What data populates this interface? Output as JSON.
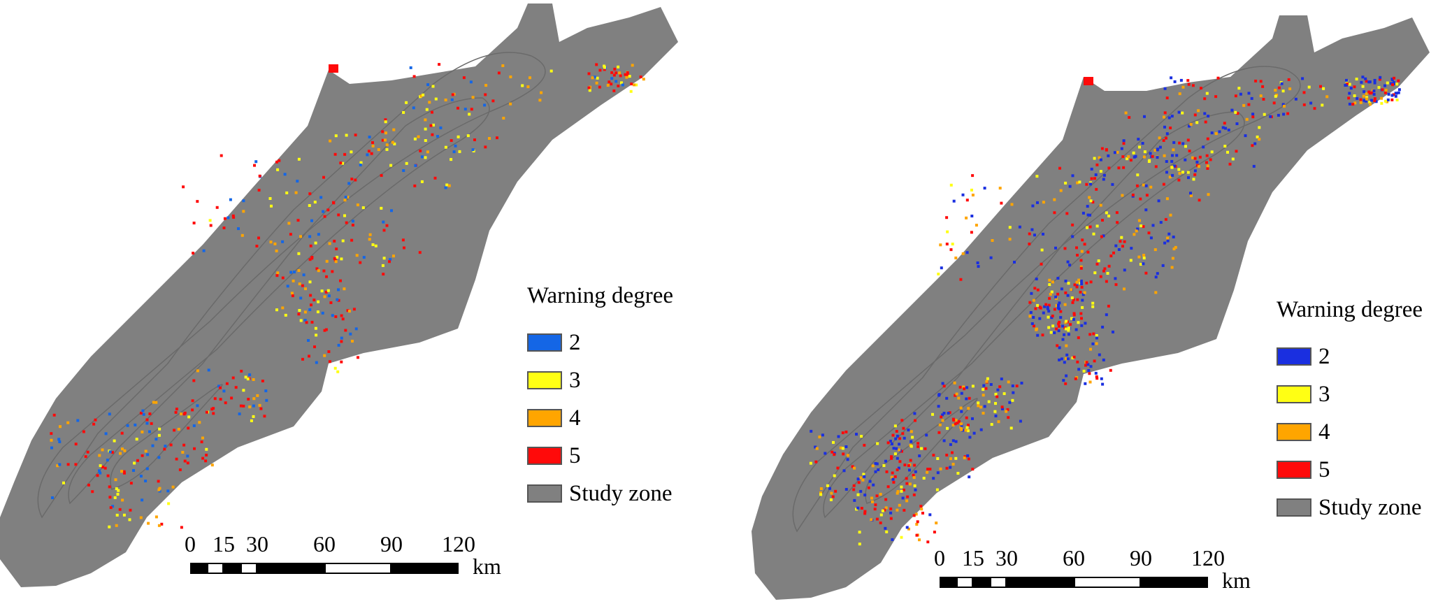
{
  "colors": {
    "study_zone": "#808080",
    "degree_2_left": "#1466e6",
    "degree_2_right": "#1a2fe0",
    "degree_3": "#ffff14",
    "degree_4": "#ffa500",
    "degree_5": "#ff0a0a",
    "contour": "#6a6a6a"
  },
  "maps": [
    {
      "id": "left",
      "legend": {
        "title": "Warning degree",
        "items": [
          {
            "label": "2",
            "color": "#1466e6"
          },
          {
            "label": "3",
            "color": "#ffff14"
          },
          {
            "label": "4",
            "color": "#ffa500"
          },
          {
            "label": "5",
            "color": "#ff0a0a"
          },
          {
            "label": "Study zone",
            "color": "#808080"
          }
        ]
      },
      "scale_bar": {
        "ticks": [
          "0",
          "15",
          "30",
          "60",
          "90",
          "120"
        ],
        "tick_values": [
          0,
          15,
          30,
          60,
          90,
          120
        ],
        "unit": "km"
      }
    },
    {
      "id": "right",
      "legend": {
        "title": "Warning degree",
        "items": [
          {
            "label": "2",
            "color": "#1a2fe0"
          },
          {
            "label": "3",
            "color": "#ffff14"
          },
          {
            "label": "4",
            "color": "#ffa500"
          },
          {
            "label": "5",
            "color": "#ff0a0a"
          },
          {
            "label": "Study zone",
            "color": "#808080"
          }
        ]
      },
      "scale_bar": {
        "ticks": [
          "0",
          "15",
          "30",
          "60",
          "90",
          "120"
        ],
        "tick_values": [
          0,
          15,
          30,
          60,
          90,
          120
        ],
        "unit": "km"
      }
    }
  ]
}
